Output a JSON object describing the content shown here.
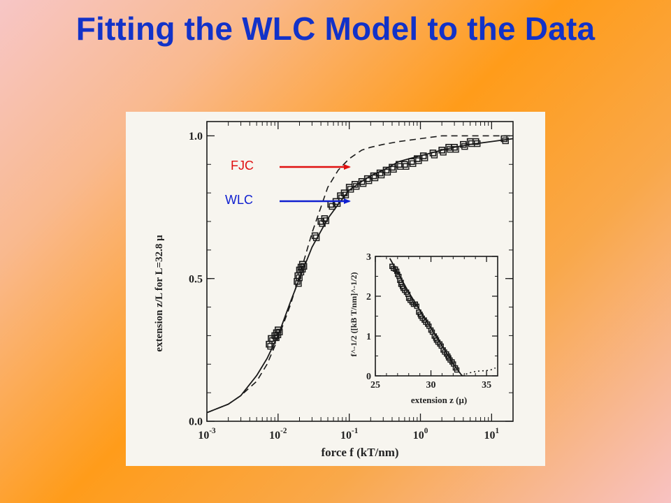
{
  "slide": {
    "title": "Fitting the WLC Model to the Data"
  },
  "annotations": {
    "fjc": {
      "label": "FJC",
      "color": "#e01010"
    },
    "wlc": {
      "label": "WLC",
      "color": "#1020d0"
    }
  },
  "chart_data": [
    {
      "type": "scatter",
      "title": "",
      "xlabel": "force f (kT/nm)",
      "ylabel": "extension z/L for L=32.8 μ",
      "xscale": "log",
      "xlim": [
        0.001,
        20
      ],
      "ylim": [
        0,
        1.05
      ],
      "xticks": [
        {
          "value": 0.001,
          "mant": "10",
          "exp": "-3"
        },
        {
          "value": 0.01,
          "mant": "10",
          "exp": "-2"
        },
        {
          "value": 0.1,
          "mant": "10",
          "exp": "-1"
        },
        {
          "value": 1,
          "mant": "10",
          "exp": "0"
        },
        {
          "value": 10,
          "mant": "10",
          "exp": "1"
        }
      ],
      "yticks": [
        {
          "value": 0.0,
          "label": "0.0"
        },
        {
          "value": 0.5,
          "label": "0.5"
        },
        {
          "value": 1.0,
          "label": "1.0"
        }
      ],
      "series": [
        {
          "name": "",
          "kind": "markers",
          "x": [
            0.0075,
            0.008,
            0.009,
            0.0095,
            0.01,
            0.0185,
            0.019,
            0.02,
            0.021,
            0.022,
            0.033,
            0.04,
            0.045,
            0.055,
            0.065,
            0.075,
            0.085,
            0.1,
            0.12,
            0.15,
            0.18,
            0.22,
            0.27,
            0.33,
            0.4,
            0.5,
            0.6,
            0.75,
            0.9,
            1.1,
            1.5,
            2,
            2.5,
            3,
            4,
            5,
            6,
            15
          ],
          "y": [
            0.27,
            0.29,
            0.3,
            0.31,
            0.32,
            0.49,
            0.51,
            0.53,
            0.54,
            0.55,
            0.65,
            0.7,
            0.71,
            0.76,
            0.77,
            0.79,
            0.8,
            0.82,
            0.83,
            0.84,
            0.85,
            0.86,
            0.87,
            0.88,
            0.89,
            0.9,
            0.9,
            0.91,
            0.92,
            0.93,
            0.94,
            0.95,
            0.96,
            0.96,
            0.97,
            0.98,
            0.98,
            0.99
          ]
        },
        {
          "name": "",
          "kind": "solid",
          "x": [
            0.001,
            0.002,
            0.003,
            0.005,
            0.007,
            0.01,
            0.015,
            0.02,
            0.03,
            0.05,
            0.07,
            0.1,
            0.15,
            0.2,
            0.3,
            0.5,
            0.7,
            1,
            2,
            3,
            5,
            10,
            20
          ],
          "y": [
            0.03,
            0.06,
            0.09,
            0.16,
            0.22,
            0.3,
            0.42,
            0.5,
            0.61,
            0.71,
            0.76,
            0.81,
            0.84,
            0.86,
            0.88,
            0.91,
            0.92,
            0.93,
            0.95,
            0.96,
            0.97,
            0.98,
            0.99
          ]
        },
        {
          "name": "",
          "kind": "dashed",
          "x": [
            0.001,
            0.002,
            0.003,
            0.005,
            0.007,
            0.01,
            0.015,
            0.02,
            0.03,
            0.05,
            0.07,
            0.1,
            0.15,
            0.2,
            0.3,
            0.5,
            1,
            2,
            5,
            10,
            20
          ],
          "y": [
            0.03,
            0.06,
            0.09,
            0.14,
            0.2,
            0.29,
            0.41,
            0.51,
            0.66,
            0.82,
            0.88,
            0.92,
            0.95,
            0.96,
            0.97,
            0.98,
            0.99,
            1.0,
            1.0,
            1.0,
            1.0
          ]
        }
      ]
    },
    {
      "type": "scatter",
      "title": "",
      "xlabel": "extension z (μ)",
      "ylabel": "f^-1/2 ([kB T/nm]^-1/2)",
      "xlim": [
        25,
        36
      ],
      "ylim": [
        0,
        3
      ],
      "xticks": [
        {
          "value": 25,
          "label": "25"
        },
        {
          "value": 30,
          "label": "30"
        },
        {
          "value": 35,
          "label": "35"
        }
      ],
      "yticks": [
        {
          "value": 0,
          "label": "0"
        },
        {
          "value": 1,
          "label": "1"
        },
        {
          "value": 2,
          "label": "2"
        },
        {
          "value": 3,
          "label": "3"
        }
      ],
      "series": [
        {
          "name": "",
          "kind": "markers",
          "x": [
            26.5,
            26.8,
            27.0,
            27.2,
            27.3,
            27.5,
            27.8,
            28.0,
            28.3,
            28.6,
            28.9,
            29.1,
            29.4,
            29.7,
            30.0,
            30.3,
            30.5,
            30.8,
            31.1,
            31.4,
            31.6,
            31.9,
            32.2
          ],
          "y": [
            2.75,
            2.68,
            2.55,
            2.4,
            2.3,
            2.2,
            2.1,
            1.95,
            1.85,
            1.8,
            1.6,
            1.5,
            1.4,
            1.3,
            1.15,
            1.0,
            0.9,
            0.8,
            0.65,
            0.55,
            0.45,
            0.35,
            0.2
          ]
        },
        {
          "name": "",
          "kind": "solid",
          "x": [
            26.3,
            27,
            28,
            29,
            30,
            31,
            32,
            32.8
          ],
          "y": [
            2.95,
            2.6,
            2.1,
            1.65,
            1.2,
            0.75,
            0.3,
            0.0
          ]
        },
        {
          "name": "",
          "kind": "dotted",
          "x": [
            32.8,
            33.3,
            33.8,
            34.3,
            34.8,
            35.3,
            35.8
          ],
          "y": [
            0.0,
            0.06,
            0.1,
            0.12,
            0.13,
            0.14,
            0.2
          ]
        }
      ]
    }
  ]
}
